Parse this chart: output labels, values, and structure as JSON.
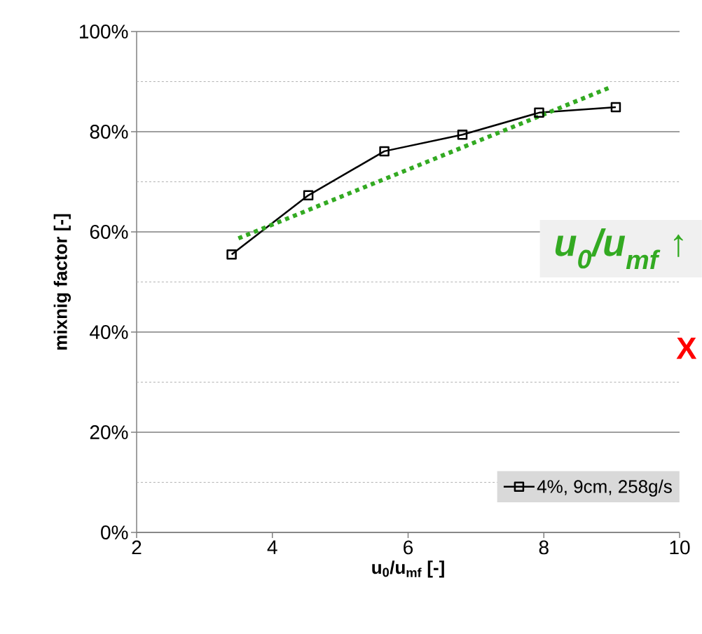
{
  "chart_data": {
    "type": "line",
    "xlabel": "u$_{0}$/u$_{mf}$ [-]",
    "ylabel": "mixnig factor [-]",
    "xlim": [
      2,
      10
    ],
    "xticks": [
      2,
      4,
      6,
      8,
      10
    ],
    "ylim": [
      0,
      100
    ],
    "yticks": [
      {
        "value": 0,
        "label": "0%"
      },
      {
        "value": 10,
        "label": null
      },
      {
        "value": 20,
        "label": "20%"
      },
      {
        "value": 30,
        "label": null
      },
      {
        "value": 40,
        "label": "40%"
      },
      {
        "value": 50,
        "label": null
      },
      {
        "value": 60,
        "label": "60%"
      },
      {
        "value": 70,
        "label": null
      },
      {
        "value": 80,
        "label": "80%"
      },
      {
        "value": 90,
        "label": null
      },
      {
        "value": 100,
        "label": "100%"
      }
    ],
    "grid": "y",
    "legend": "bottom right",
    "series": [
      {
        "name": "4%, 9cm, 258g/s",
        "color": "#000000",
        "marker": "square",
        "line_style": "solid",
        "x": [
          3.4,
          4.53,
          5.65,
          6.8,
          7.93,
          9.06
        ],
        "values": [
          55.5,
          67.3,
          76.1,
          79.4,
          83.8,
          84.9
        ]
      },
      {
        "type": "line",
        "color": "#33aa22",
        "marker": "none",
        "line_style": "dotted",
        "x": [
          3.5,
          8.97
        ],
        "values": [
          58.7,
          88.8
        ]
      }
    ],
    "annotations": [
      "u$_{0}$/u$_{mf}$ ↑",
      "X"
    ]
  }
}
